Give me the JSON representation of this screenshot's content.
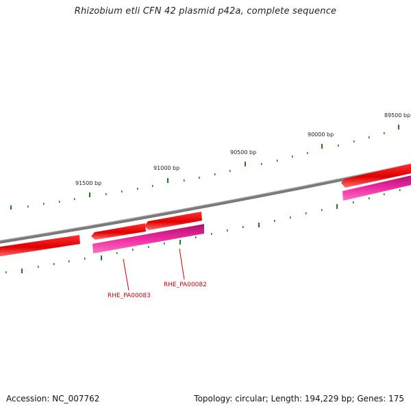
{
  "title": "Rhizobium etli CFN 42 plasmid p42a, complete sequence",
  "footer": {
    "accession": "Accession: NC_007762",
    "summary": "Topology: circular; Length: 194,229 bp; Genes: 175"
  },
  "ticks": [
    {
      "label": "89500 bp"
    },
    {
      "label": "90000 bp"
    },
    {
      "label": "90500 bp"
    },
    {
      "label": "91000 bp"
    },
    {
      "label": "91500 bp"
    }
  ],
  "genes": [
    {
      "label": "RHE_PA00082"
    },
    {
      "label": "RHE_PA00083"
    }
  ],
  "colors": {
    "backbone": "#7a7a7a",
    "gene": "#ee0000",
    "cds": "#e0208f",
    "tick": "#1a7a1a",
    "label": "#cc0000"
  }
}
